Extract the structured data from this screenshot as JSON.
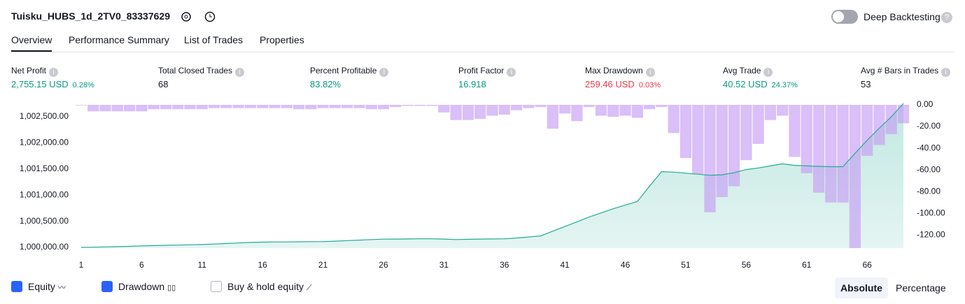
{
  "header": {
    "title": "Tuisku_HUBS_1d_2TV0_83337629",
    "toggle_label": "Deep Backtesting"
  },
  "tabs": [
    "Overview",
    "Performance Summary",
    "List of Trades",
    "Properties"
  ],
  "metrics": [
    {
      "label": "Net Profit",
      "value": "2,755.15 USD",
      "sub": "0.28%",
      "tone": "green"
    },
    {
      "label": "Total Closed Trades",
      "value": "68",
      "tone": "plain"
    },
    {
      "label": "Percent Profitable",
      "value": "83.82%",
      "tone": "green"
    },
    {
      "label": "Profit Factor",
      "value": "16.918",
      "tone": "green"
    },
    {
      "label": "Max Drawdown",
      "value": "259.46 USD",
      "sub": "0.03%",
      "tone": "red"
    },
    {
      "label": "Avg Trade",
      "value": "40.52 USD",
      "sub": "24.37%",
      "tone": "green"
    },
    {
      "label": "Avg # Bars in Trades",
      "value": "53",
      "tone": "plain"
    }
  ],
  "chart_data": {
    "type": "combo",
    "x": [
      1,
      2,
      3,
      4,
      5,
      6,
      7,
      8,
      9,
      10,
      11,
      12,
      13,
      14,
      15,
      16,
      17,
      18,
      19,
      20,
      21,
      22,
      23,
      24,
      25,
      26,
      27,
      28,
      29,
      30,
      31,
      32,
      33,
      34,
      35,
      36,
      37,
      38,
      39,
      40,
      41,
      42,
      43,
      44,
      45,
      46,
      47,
      48,
      49,
      50,
      51,
      52,
      53,
      54,
      55,
      56,
      57,
      58,
      59,
      60,
      61,
      62,
      63,
      64,
      65,
      66,
      67,
      68,
      69
    ],
    "xlim": [
      1,
      69
    ],
    "xticks": [
      1,
      6,
      11,
      16,
      21,
      26,
      31,
      36,
      41,
      46,
      51,
      56,
      61,
      66
    ],
    "ylim": [
      999987,
      1002728
    ],
    "yticks": [
      {
        "value": 1000000,
        "label": "1,000,000.00"
      },
      {
        "value": 1000500,
        "label": "1,000,500.00"
      },
      {
        "value": 1001000,
        "label": "1,001,000.00"
      },
      {
        "value": 1001500,
        "label": "1,001,500.00"
      },
      {
        "value": 1002000,
        "label": "1,002,000.00"
      },
      {
        "value": 1002500,
        "label": "1,002,500.00"
      }
    ],
    "y2lim": [
      -132,
      0
    ],
    "y2ticks": [
      {
        "value": 0,
        "label": "0.00"
      },
      {
        "value": -20,
        "label": "-20.00"
      },
      {
        "value": -40,
        "label": "-40.00"
      },
      {
        "value": -60,
        "label": "-60.00"
      },
      {
        "value": -80,
        "label": "-80.00"
      },
      {
        "value": -100,
        "label": "-100.00"
      },
      {
        "value": -120,
        "label": "-120.00"
      }
    ],
    "series": [
      {
        "name": "Equity",
        "color": "#22ab94",
        "values": [
          1000000,
          1000005,
          1000010,
          1000015,
          1000020,
          1000030,
          1000035,
          1000040,
          1000045,
          1000050,
          1000055,
          1000065,
          1000075,
          1000085,
          1000095,
          1000100,
          1000105,
          1000105,
          1000108,
          1000110,
          1000112,
          1000120,
          1000130,
          1000140,
          1000150,
          1000158,
          1000160,
          1000162,
          1000165,
          1000165,
          1000160,
          1000150,
          1000155,
          1000160,
          1000162,
          1000165,
          1000180,
          1000200,
          1000220,
          1000310,
          1000400,
          1000490,
          1000580,
          1000660,
          1000740,
          1000810,
          1000880,
          1001170,
          1001450,
          1001440,
          1001420,
          1001400,
          1001380,
          1001390,
          1001430,
          1001490,
          1001520,
          1001560,
          1001600,
          1001570,
          1001560,
          1001550,
          1001545,
          1001545,
          1001800,
          1002050,
          1002280,
          1002500,
          1002755
        ]
      },
      {
        "name": "Drawdown",
        "color": "#c69cf4",
        "axis": "y2",
        "values": [
          0,
          -6,
          -6,
          -6,
          -6,
          -6,
          -4,
          -4,
          -4,
          -4,
          -4,
          -3,
          -3,
          -3,
          -3,
          -3,
          -3,
          -3,
          -4,
          -4,
          -3,
          -3,
          -3,
          -3,
          -4,
          -4,
          -2,
          -1,
          -1,
          -1,
          -7,
          -14,
          -14,
          -13,
          -10,
          -9,
          -5,
          -3,
          -2,
          -22,
          -8,
          -15,
          -2,
          -10,
          -11,
          -10,
          -12,
          -4,
          -2,
          -26,
          -49,
          -64,
          -99,
          -85,
          -75,
          -51,
          -36,
          -14,
          -10,
          -48,
          -63,
          -81,
          -90,
          -90,
          -132,
          -47,
          -37,
          -27,
          -17
        ]
      }
    ]
  },
  "controls": {
    "buy_hold": "Buy & hold equity",
    "modes": [
      "Absolute",
      "Percentage"
    ]
  }
}
